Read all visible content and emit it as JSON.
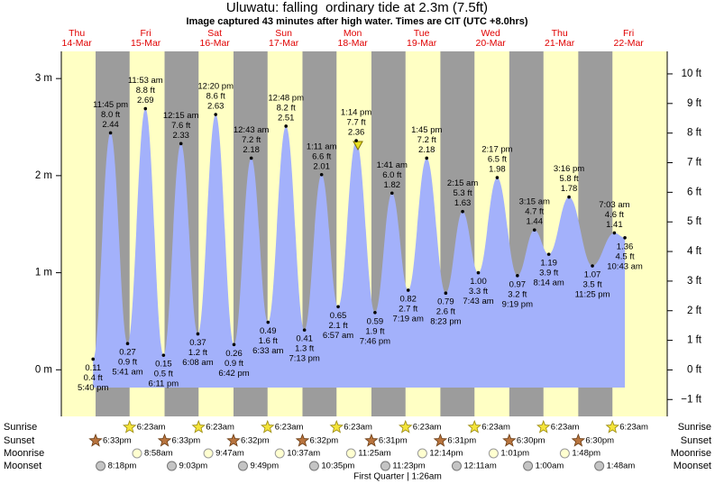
{
  "chart_data": {
    "type": "tide",
    "title": "Uluwatu: falling  ordinary tide at 2.3m (7.5ft)",
    "subtitle": "Image captured 43 minutes after high water. Times are CIT (UTC +8.0hrs)",
    "ylim": [
      -0.48,
      3.28
    ],
    "yticks": [
      {
        "value": 0,
        "label": "0 m"
      },
      {
        "value": 1,
        "label": "1 m"
      },
      {
        "value": 2,
        "label": "2 m"
      },
      {
        "value": 3,
        "label": "3 m"
      }
    ],
    "y2lim": [
      -1.57,
      10.76
    ],
    "y2ticks": [
      {
        "value": -1,
        "label": "−1 ft"
      },
      {
        "value": 0,
        "label": "0 ft"
      },
      {
        "value": 1,
        "label": "1 ft"
      },
      {
        "value": 2,
        "label": "2 ft"
      },
      {
        "value": 3,
        "label": "3 ft"
      },
      {
        "value": 4,
        "label": "4 ft"
      },
      {
        "value": 5,
        "label": "5 ft"
      },
      {
        "value": 6,
        "label": "6 ft"
      },
      {
        "value": 7,
        "label": "7 ft"
      },
      {
        "value": 8,
        "label": "8 ft"
      },
      {
        "value": 9,
        "label": "9 ft"
      },
      {
        "value": 10,
        "label": "10 ft"
      }
    ],
    "color": "#a3b1fb",
    "row_labels": [
      "Sunrise",
      "Sunset",
      "Moonrise",
      "Moonset"
    ],
    "moon_phase": "First Quarter | 1:26am",
    "days": [
      {
        "weekday": "Thu",
        "date": "14-Mar",
        "tides": [
          {
            "time": "5:40 pm",
            "value": 0.11,
            "ft": "0.4 ft"
          },
          {
            "time": "11:45 pm",
            "value": 2.44,
            "ft": "8.0 ft"
          }
        ],
        "sunset": "6:33pm",
        "moonset": "8:18pm"
      },
      {
        "weekday": "Fri",
        "date": "15-Mar",
        "tides": [
          {
            "time": "5:41 am",
            "value": 0.27,
            "ft": "0.9 ft"
          },
          {
            "time": "11:53 am",
            "value": 2.69,
            "ft": "8.8 ft"
          },
          {
            "time": "6:11 pm",
            "value": 0.15,
            "ft": "0.5 ft"
          }
        ],
        "sunrise": "6:23am",
        "sunset": "6:33pm",
        "moonrise": "8:58am",
        "moonset": "9:03pm"
      },
      {
        "weekday": "Sat",
        "date": "16-Mar",
        "tides": [
          {
            "time": "12:15 am",
            "value": 2.33,
            "ft": "7.6 ft"
          },
          {
            "time": "6:08 am",
            "value": 0.37,
            "ft": "1.2 ft"
          },
          {
            "time": "12:20 pm",
            "value": 2.63,
            "ft": "8.6 ft"
          },
          {
            "time": "6:42 pm",
            "value": 0.26,
            "ft": "0.9 ft"
          }
        ],
        "sunrise": "6:23am",
        "sunset": "6:32pm",
        "moonrise": "9:47am",
        "moonset": "9:49pm"
      },
      {
        "weekday": "Sun",
        "date": "17-Mar",
        "tides": [
          {
            "time": "12:43 am",
            "value": 2.18,
            "ft": "7.2 ft"
          },
          {
            "time": "6:33 am",
            "value": 0.49,
            "ft": "1.6 ft"
          },
          {
            "time": "12:48 pm",
            "value": 2.51,
            "ft": "8.2 ft"
          },
          {
            "time": "7:13 pm",
            "value": 0.41,
            "ft": "1.3 ft"
          }
        ],
        "sunrise": "6:23am",
        "sunset": "6:32pm",
        "moonrise": "10:37am",
        "moonset": "10:35pm"
      },
      {
        "weekday": "Mon",
        "date": "18-Mar",
        "tides": [
          {
            "time": "1:11 am",
            "value": 2.01,
            "ft": "6.6 ft"
          },
          {
            "time": "6:57 am",
            "value": 0.65,
            "ft": "2.1 ft"
          },
          {
            "time": "1:14 pm",
            "value": 2.36,
            "ft": "7.7 ft"
          },
          {
            "time": "7:46 pm",
            "value": 0.59,
            "ft": "1.9 ft"
          }
        ],
        "sunrise": "6:23am",
        "sunset": "6:31pm",
        "moonrise": "11:25am",
        "moonset": "11:23pm"
      },
      {
        "weekday": "Tue",
        "date": "19-Mar",
        "tides": [
          {
            "time": "1:41 am",
            "value": 1.82,
            "ft": "6.0 ft"
          },
          {
            "time": "7:19 am",
            "value": 0.82,
            "ft": "2.7 ft"
          },
          {
            "time": "1:45 pm",
            "value": 2.18,
            "ft": "7.2 ft"
          },
          {
            "time": "8:23 pm",
            "value": 0.79,
            "ft": "2.6 ft"
          }
        ],
        "sunrise": "6:23am",
        "sunset": "6:31pm",
        "moonrise": "12:14pm"
      },
      {
        "weekday": "Wed",
        "date": "20-Mar",
        "tides": [
          {
            "time": "2:15 am",
            "value": 1.63,
            "ft": "5.3 ft"
          },
          {
            "time": "7:43 am",
            "value": 1,
            "label": "1.00",
            "ft": "3.3 ft"
          },
          {
            "time": "2:17 pm",
            "value": 1.98,
            "ft": "6.5 ft"
          },
          {
            "time": "9:19 pm",
            "value": 0.97,
            "ft": "3.2 ft"
          }
        ],
        "sunrise": "6:23am",
        "sunset": "6:30pm",
        "moonrise": "1:01pm",
        "moonset": "12:11am"
      },
      {
        "weekday": "Thu",
        "date": "21-Mar",
        "tides": [
          {
            "time": "3:15 am",
            "value": 1.44,
            "ft": "4.7 ft"
          },
          {
            "time": "8:14 am",
            "value": 1.19,
            "ft": "3.9 ft"
          },
          {
            "time": "3:16 pm",
            "value": 1.78,
            "ft": "5.8 ft"
          },
          {
            "time": "11:25 pm",
            "value": 1.07,
            "ft": "3.5 ft"
          }
        ],
        "sunrise": "6:23am",
        "sunset": "6:30pm",
        "moonrise": "1:48pm",
        "moonset": "1:00am"
      },
      {
        "weekday": "Fri",
        "date": "22-Mar",
        "tides": [
          {
            "time": "7:03 am",
            "value": 1.41,
            "ft": "4.6 ft"
          },
          {
            "time": "10:43 am",
            "value": 1.36,
            "ft": "4.5 ft"
          }
        ],
        "sunrise": "6:23am",
        "moonset": "1:48am"
      }
    ]
  }
}
